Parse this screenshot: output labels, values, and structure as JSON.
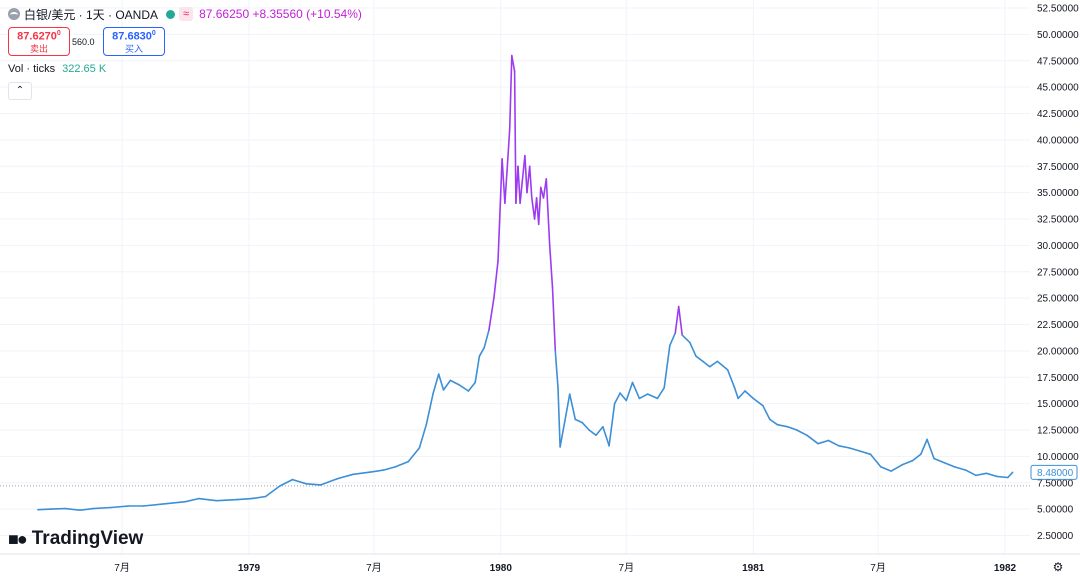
{
  "header": {
    "symbol": "白银/美元 · 1天 · OANDA",
    "realtime_badge": "≈",
    "quote": "87.66250 +8.35560 (+10.54%)",
    "status_color": "#22ab94"
  },
  "trade": {
    "sell_price": "87.6270",
    "sell_price_sup": "0",
    "sell_label": "卖出",
    "spread": "560.0",
    "buy_price": "87.6830",
    "buy_price_sup": "0",
    "buy_label": "买入"
  },
  "volume": {
    "label": "Vol · ticks",
    "value": "322.65 K"
  },
  "collapse_icon": "chevron-up-icon",
  "branding": {
    "logo_text": "TradingView"
  },
  "settings_icon": "gear-icon",
  "colors": {
    "line_primary": "#3d8fd6",
    "line_highlight": "#9c3cf0",
    "price_tag": "#3d8fd6",
    "reference_line": "#9aa0ad"
  },
  "chart_data": {
    "type": "line",
    "title": "白银/美元 · 1天 · OANDA",
    "xlabel": "",
    "ylabel": "",
    "ylim": [
      2.5,
      52.5
    ],
    "y_tick_labels": [
      "52.50000",
      "50.00000",
      "47.50000",
      "45.00000",
      "42.50000",
      "40.00000",
      "37.50000",
      "35.00000",
      "32.50000",
      "30.00000",
      "27.50000",
      "25.00000",
      "22.50000",
      "20.00000",
      "17.50000",
      "15.00000",
      "12.50000",
      "10.00000",
      "8.48000",
      "7.50000",
      "5.00000",
      "2.50000"
    ],
    "y_tick_values": [
      52.5,
      50,
      47.5,
      45,
      42.5,
      40,
      37.5,
      35,
      32.5,
      30,
      27.5,
      25,
      22.5,
      20,
      17.5,
      15,
      12.5,
      10,
      8.48,
      7.5,
      5,
      2.5
    ],
    "x_tick_labels": [
      "7月",
      "1979",
      "7月",
      "1980",
      "7月",
      "1981",
      "7月",
      "1982"
    ],
    "x_tick_dates": [
      "1978-07-01",
      "1979-01-01",
      "1979-07-01",
      "1980-01-01",
      "1980-07-01",
      "1981-01-01",
      "1981-07-01",
      "1982-01-01"
    ],
    "last_price_label": "8.48000",
    "last_price": 8.48,
    "reference_level": 7.2,
    "grid": true,
    "series": [
      {
        "color": "#3d8fd6",
        "highlight_color": "#9c3cf0",
        "highlight_above": 23,
        "points": [
          [
            "1978-03-01",
            4.95
          ],
          [
            "1978-03-20",
            5.0
          ],
          [
            "1978-04-10",
            5.05
          ],
          [
            "1978-05-01",
            4.9
          ],
          [
            "1978-05-20",
            5.05
          ],
          [
            "1978-06-15",
            5.15
          ],
          [
            "1978-07-10",
            5.3
          ],
          [
            "1978-08-01",
            5.3
          ],
          [
            "1978-09-01",
            5.5
          ],
          [
            "1978-10-01",
            5.7
          ],
          [
            "1978-10-20",
            6.0
          ],
          [
            "1978-11-15",
            5.8
          ],
          [
            "1978-12-15",
            5.9
          ],
          [
            "1979-01-05",
            6.0
          ],
          [
            "1979-01-25",
            6.2
          ],
          [
            "1979-02-15",
            7.2
          ],
          [
            "1979-03-05",
            7.8
          ],
          [
            "1979-03-25",
            7.4
          ],
          [
            "1979-04-15",
            7.3
          ],
          [
            "1979-05-10",
            7.9
          ],
          [
            "1979-06-01",
            8.3
          ],
          [
            "1979-06-25",
            8.5
          ],
          [
            "1979-07-15",
            8.7
          ],
          [
            "1979-08-01",
            9.0
          ],
          [
            "1979-08-20",
            9.5
          ],
          [
            "1979-09-05",
            10.8
          ],
          [
            "1979-09-15",
            13.0
          ],
          [
            "1979-09-25",
            16.0
          ],
          [
            "1979-10-03",
            17.8
          ],
          [
            "1979-10-10",
            16.3
          ],
          [
            "1979-10-20",
            17.2
          ],
          [
            "1979-11-01",
            16.8
          ],
          [
            "1979-11-15",
            16.2
          ],
          [
            "1979-11-25",
            17.0
          ],
          [
            "1979-12-01",
            19.5
          ],
          [
            "1979-12-08",
            20.3
          ],
          [
            "1979-12-15",
            22.0
          ],
          [
            "1979-12-22",
            25.0
          ],
          [
            "1979-12-28",
            28.5
          ],
          [
            "1980-01-03",
            38.2
          ],
          [
            "1980-01-07",
            34.0
          ],
          [
            "1980-01-10",
            37.0
          ],
          [
            "1980-01-14",
            41.0
          ],
          [
            "1980-01-17",
            48.0
          ],
          [
            "1980-01-21",
            46.5
          ],
          [
            "1980-01-23",
            34.0
          ],
          [
            "1980-01-26",
            37.5
          ],
          [
            "1980-01-29",
            34.0
          ],
          [
            "1980-02-01",
            36.0
          ],
          [
            "1980-02-05",
            38.5
          ],
          [
            "1980-02-08",
            35.0
          ],
          [
            "1980-02-12",
            37.5
          ],
          [
            "1980-02-15",
            34.5
          ],
          [
            "1980-02-19",
            32.5
          ],
          [
            "1980-02-22",
            34.5
          ],
          [
            "1980-02-25",
            32.0
          ],
          [
            "1980-02-28",
            35.5
          ],
          [
            "1980-03-03",
            34.5
          ],
          [
            "1980-03-07",
            36.3
          ],
          [
            "1980-03-12",
            30.0
          ],
          [
            "1980-03-16",
            26.0
          ],
          [
            "1980-03-20",
            20.0
          ],
          [
            "1980-03-24",
            16.5
          ],
          [
            "1980-03-27",
            10.9
          ],
          [
            "1980-04-02",
            13.0
          ],
          [
            "1980-04-10",
            15.9
          ],
          [
            "1980-04-18",
            13.5
          ],
          [
            "1980-04-28",
            13.2
          ],
          [
            "1980-05-08",
            12.5
          ],
          [
            "1980-05-18",
            12.0
          ],
          [
            "1980-05-28",
            12.8
          ],
          [
            "1980-06-06",
            11.0
          ],
          [
            "1980-06-14",
            15.0
          ],
          [
            "1980-06-22",
            16.0
          ],
          [
            "1980-07-01",
            15.3
          ],
          [
            "1980-07-10",
            17.0
          ],
          [
            "1980-07-20",
            15.5
          ],
          [
            "1980-08-01",
            15.9
          ],
          [
            "1980-08-15",
            15.5
          ],
          [
            "1980-08-25",
            16.5
          ],
          [
            "1980-09-02",
            20.5
          ],
          [
            "1980-09-10",
            21.7
          ],
          [
            "1980-09-15",
            24.2
          ],
          [
            "1980-09-20",
            21.5
          ],
          [
            "1980-10-01",
            20.8
          ],
          [
            "1980-10-10",
            19.5
          ],
          [
            "1980-10-20",
            19.0
          ],
          [
            "1980-10-30",
            18.5
          ],
          [
            "1980-11-10",
            19.0
          ],
          [
            "1980-11-25",
            18.2
          ],
          [
            "1980-12-05",
            16.5
          ],
          [
            "1980-12-10",
            15.5
          ],
          [
            "1980-12-20",
            16.2
          ],
          [
            "1981-01-01",
            15.5
          ],
          [
            "1981-01-15",
            14.8
          ],
          [
            "1981-01-25",
            13.5
          ],
          [
            "1981-02-05",
            13.0
          ],
          [
            "1981-02-20",
            12.8
          ],
          [
            "1981-03-05",
            12.5
          ],
          [
            "1981-03-20",
            12.0
          ],
          [
            "1981-04-05",
            11.2
          ],
          [
            "1981-04-20",
            11.5
          ],
          [
            "1981-05-05",
            11.0
          ],
          [
            "1981-05-20",
            10.8
          ],
          [
            "1981-06-05",
            10.5
          ],
          [
            "1981-06-20",
            10.2
          ],
          [
            "1981-07-05",
            9.0
          ],
          [
            "1981-07-20",
            8.6
          ],
          [
            "1981-08-05",
            9.2
          ],
          [
            "1981-08-20",
            9.6
          ],
          [
            "1981-09-01",
            10.2
          ],
          [
            "1981-09-10",
            11.6
          ],
          [
            "1981-09-20",
            9.8
          ],
          [
            "1981-10-05",
            9.4
          ],
          [
            "1981-10-20",
            9.0
          ],
          [
            "1981-11-05",
            8.7
          ],
          [
            "1981-11-20",
            8.2
          ],
          [
            "1981-12-05",
            8.4
          ],
          [
            "1981-12-20",
            8.1
          ],
          [
            "1982-01-05",
            8.0
          ],
          [
            "1982-01-12",
            8.48
          ]
        ]
      }
    ]
  }
}
